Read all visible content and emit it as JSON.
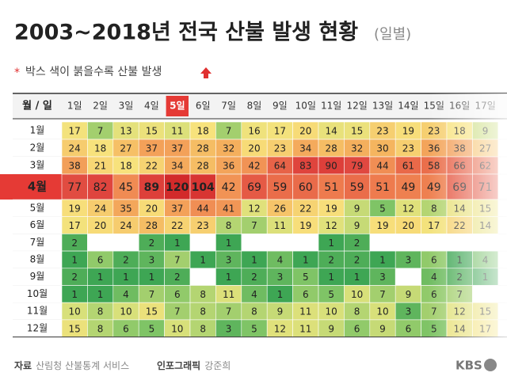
{
  "header": {
    "title": "2003~2018년 전국 산불 발생 현황",
    "subtitle": "(일별)",
    "note_marker": "*",
    "note": "박스 색이 붉을수록 산불 발생"
  },
  "table": {
    "corner": "월 / 일",
    "highlight_row": 3,
    "highlight_column": 4,
    "columns": [
      "1일",
      "2일",
      "3일",
      "4일",
      "5일",
      "6일",
      "7일",
      "8일",
      "9일",
      "10일",
      "11일",
      "12일",
      "13일",
      "14일",
      "15일",
      "16일",
      "17일"
    ],
    "rows": [
      {
        "label": "1월",
        "values": [
          17,
          7,
          13,
          15,
          11,
          18,
          7,
          16,
          17,
          20,
          14,
          15,
          23,
          19,
          23,
          18,
          9
        ]
      },
      {
        "label": "2월",
        "values": [
          24,
          18,
          27,
          37,
          37,
          28,
          32,
          20,
          23,
          34,
          28,
          32,
          30,
          23,
          36,
          38,
          27
        ]
      },
      {
        "label": "3월",
        "values": [
          38,
          21,
          18,
          22,
          34,
          28,
          36,
          42,
          64,
          83,
          90,
          79,
          44,
          61,
          58,
          66,
          62
        ]
      },
      {
        "label": "4월",
        "values": [
          77,
          82,
          45,
          89,
          120,
          104,
          42,
          69,
          59,
          60,
          51,
          59,
          51,
          49,
          49,
          69,
          71
        ]
      },
      {
        "label": "5월",
        "values": [
          19,
          24,
          35,
          20,
          37,
          44,
          41,
          12,
          26,
          22,
          19,
          9,
          5,
          12,
          8,
          14,
          15
        ]
      },
      {
        "label": "6월",
        "values": [
          17,
          20,
          24,
          28,
          22,
          23,
          8,
          7,
          11,
          19,
          12,
          9,
          19,
          20,
          17,
          22,
          14
        ]
      },
      {
        "label": "7월",
        "values": [
          2,
          null,
          null,
          2,
          1,
          null,
          1,
          null,
          null,
          null,
          1,
          2,
          null,
          null,
          null,
          null,
          null
        ]
      },
      {
        "label": "8월",
        "values": [
          1,
          6,
          2,
          3,
          7,
          1,
          3,
          1,
          4,
          1,
          2,
          2,
          1,
          3,
          6,
          1,
          4
        ]
      },
      {
        "label": "9월",
        "values": [
          2,
          1,
          1,
          1,
          2,
          null,
          1,
          2,
          3,
          5,
          1,
          1,
          3,
          null,
          4,
          2,
          1
        ]
      },
      {
        "label": "10월",
        "values": [
          1,
          1,
          4,
          7,
          6,
          8,
          11,
          4,
          1,
          6,
          5,
          10,
          7,
          9,
          6,
          7,
          null
        ]
      },
      {
        "label": "11월",
        "values": [
          10,
          8,
          10,
          15,
          7,
          8,
          7,
          8,
          9,
          11,
          10,
          8,
          10,
          3,
          7,
          12,
          15
        ]
      },
      {
        "label": "12월",
        "values": [
          15,
          8,
          6,
          5,
          10,
          8,
          3,
          5,
          12,
          11,
          9,
          6,
          9,
          6,
          5,
          14,
          17
        ]
      }
    ]
  },
  "footer": {
    "source_label": "자료",
    "source": "산림청 산불통계 서비스",
    "credit_label": "인포그래픽",
    "credit": "강준희",
    "logo": "KBS"
  }
}
